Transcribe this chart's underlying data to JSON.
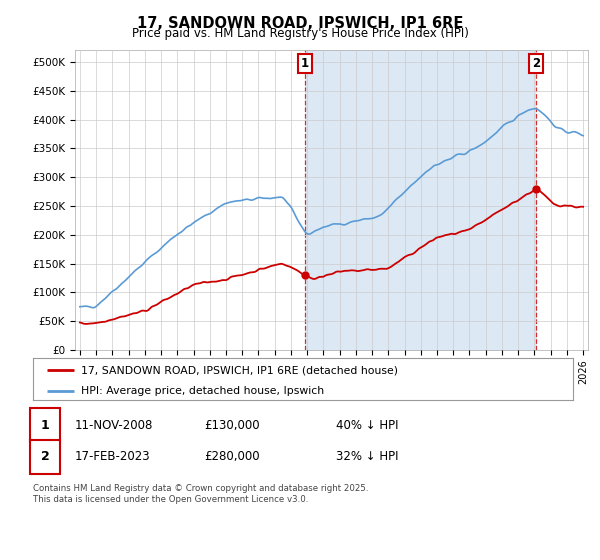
{
  "title": "17, SANDOWN ROAD, IPSWICH, IP1 6RE",
  "subtitle": "Price paid vs. HM Land Registry's House Price Index (HPI)",
  "ylim": [
    0,
    520000
  ],
  "yticks": [
    0,
    50000,
    100000,
    150000,
    200000,
    250000,
    300000,
    350000,
    400000,
    450000,
    500000
  ],
  "ytick_labels": [
    "£0",
    "£50K",
    "£100K",
    "£150K",
    "£200K",
    "£250K",
    "£300K",
    "£350K",
    "£400K",
    "£450K",
    "£500K"
  ],
  "xlim_start": 1994.7,
  "xlim_end": 2026.3,
  "hpi_color": "#5b9bd5",
  "hpi_fill_color": "#dce9f5",
  "price_color": "#cc0000",
  "sale1_x": 2008.87,
  "sale1_y": 130000,
  "sale2_x": 2023.12,
  "sale2_y": 280000,
  "legend_price_label": "17, SANDOWN ROAD, IPSWICH, IP1 6RE (detached house)",
  "legend_hpi_label": "HPI: Average price, detached house, Ipswich",
  "table_row1": [
    "1",
    "11-NOV-2008",
    "£130,000",
    "40% ↓ HPI"
  ],
  "table_row2": [
    "2",
    "17-FEB-2023",
    "£280,000",
    "32% ↓ HPI"
  ],
  "footnote": "Contains HM Land Registry data © Crown copyright and database right 2025.\nThis data is licensed under the Open Government Licence v3.0.",
  "bg_color": "#ffffff",
  "grid_color": "#cccccc",
  "vline_color": "#cc0000",
  "shade_color": "#dce9f5"
}
